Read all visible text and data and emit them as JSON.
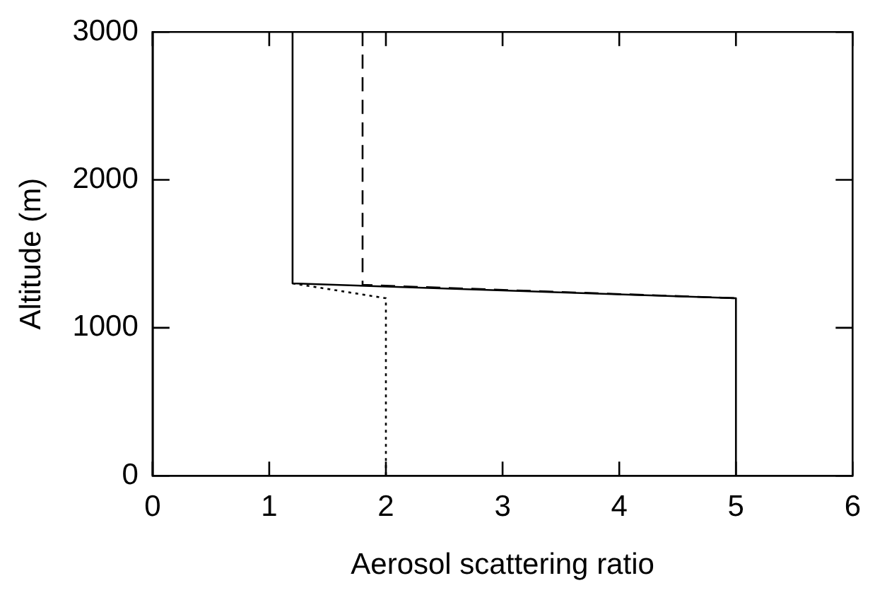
{
  "chart_data": {
    "type": "line",
    "xlabel": "Aerosol scattering ratio",
    "ylabel": "Altitude (m)",
    "xlim": [
      0,
      6
    ],
    "ylim": [
      0,
      3000
    ],
    "xticks": [
      0,
      1,
      2,
      3,
      4,
      5,
      6
    ],
    "yticks": [
      0,
      1000,
      2000,
      3000
    ],
    "grid": false,
    "legend": false,
    "marker": "none",
    "series": [
      {
        "color": "#000000",
        "line_style": "solid",
        "x": [
          5,
          5,
          1.2,
          1.2
        ],
        "values": [
          0,
          1200,
          1300,
          3000
        ]
      },
      {
        "color": "#000000",
        "line_style": "dashed",
        "x": [
          1.8,
          1.8,
          5
        ],
        "values": [
          3000,
          1290,
          1200
        ]
      },
      {
        "color": "#000000",
        "line_style": "dotted",
        "x": [
          1.2,
          2,
          2
        ],
        "values": [
          1300,
          1200,
          0
        ]
      }
    ]
  }
}
